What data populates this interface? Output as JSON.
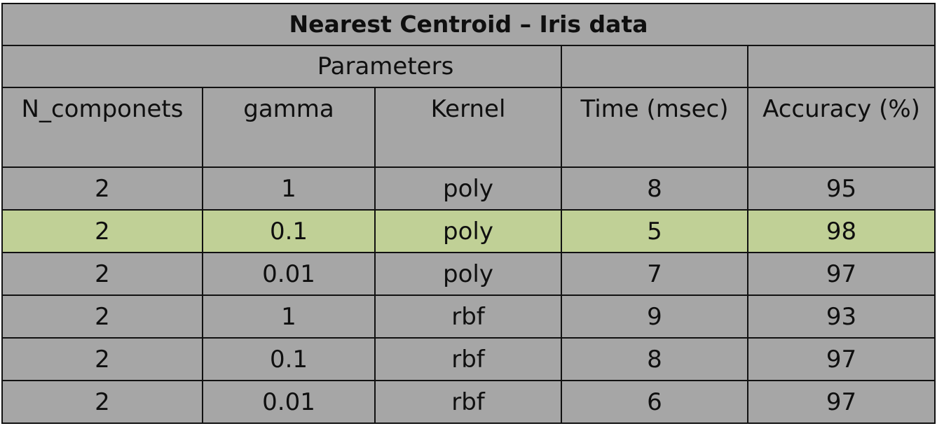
{
  "title": "Nearest Centroid – Iris data",
  "parameters_label": "Parameters",
  "headers": {
    "n_components": "N_componets",
    "gamma": "gamma",
    "kernel": "Kernel",
    "time": "Time (msec)",
    "accuracy": "Accuracy (%)"
  },
  "rows": [
    {
      "n_components": "2",
      "gamma": "1",
      "kernel": "poly",
      "time": "8",
      "accuracy": "95",
      "highlighted": false
    },
    {
      "n_components": "2",
      "gamma": "0.1",
      "kernel": "poly",
      "time": "5",
      "accuracy": "98",
      "highlighted": true
    },
    {
      "n_components": "2",
      "gamma": "0.01",
      "kernel": "poly",
      "time": "7",
      "accuracy": "97",
      "highlighted": false
    },
    {
      "n_components": "2",
      "gamma": "1",
      "kernel": "rbf",
      "time": "9",
      "accuracy": "93",
      "highlighted": false
    },
    {
      "n_components": "2",
      "gamma": "0.1",
      "kernel": "rbf",
      "time": "8",
      "accuracy": "97",
      "highlighted": false
    },
    {
      "n_components": "2",
      "gamma": "0.01",
      "kernel": "rbf",
      "time": "6",
      "accuracy": "97",
      "highlighted": false
    }
  ],
  "colors": {
    "cell_background": "#a6a6a6",
    "highlight_background": "#c0d096",
    "border": "#111111"
  }
}
